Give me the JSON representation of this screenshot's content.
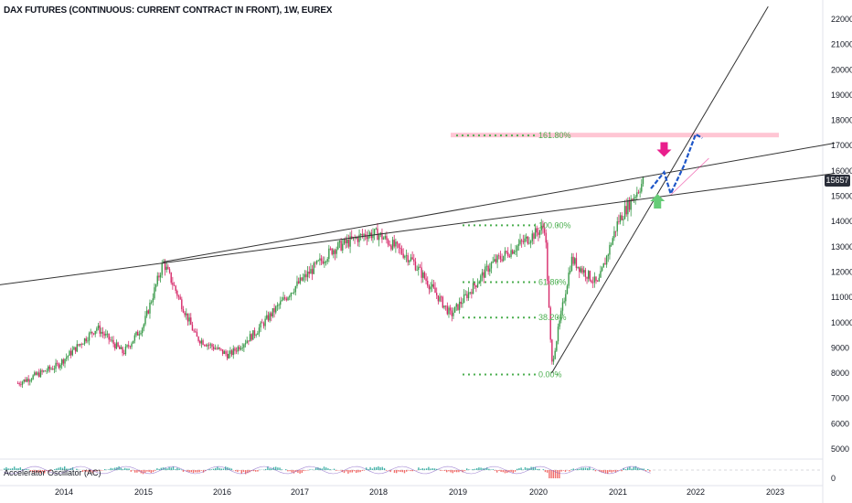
{
  "header": {
    "title": "DAX FUTURES (CONTINUOUS: CURRENT CONTRACT IN FRONT), 1W, EUREX",
    "last_price": "15657"
  },
  "indicator": {
    "label": "Accelerator Oscillator (AC)",
    "zero_label": "0"
  },
  "colors": {
    "up": "#26a69a",
    "down": "#ef5350",
    "up_candle": "#3a9a4a",
    "down_candle": "#d62a6a",
    "fib": "#4caf50",
    "fib_ext": "#ffb3c6",
    "trendline": "#333333",
    "projection": "#1e56c8",
    "arrow_down": "#e91e8c",
    "arrow_up": "#66cc77"
  },
  "chart_data": {
    "type": "candlestick",
    "title": "DAX FUTURES (CONTINUOUS: CURRENT CONTRACT IN FRONT), 1W, EUREX",
    "x_ticks": [
      "2014",
      "2015",
      "2016",
      "2017",
      "2018",
      "2019",
      "2020",
      "2021",
      "2022",
      "2023"
    ],
    "y_ticks": [
      5000,
      6000,
      7000,
      8000,
      9000,
      10000,
      11000,
      12000,
      13000,
      14000,
      15000,
      16000,
      17000,
      18000,
      19000,
      20000,
      21000,
      22000
    ],
    "ylim": [
      4500,
      22500
    ],
    "last_price": 15657,
    "price_path": [
      [
        "2013-06",
        7600
      ],
      [
        "2013-12",
        8300
      ],
      [
        "2014-06",
        9800
      ],
      [
        "2014-10",
        8800
      ],
      [
        "2015-01",
        9900
      ],
      [
        "2015-04",
        12400
      ],
      [
        "2015-09",
        9400
      ],
      [
        "2016-02",
        8700
      ],
      [
        "2016-06",
        9600
      ],
      [
        "2016-12",
        11400
      ],
      [
        "2017-06",
        12900
      ],
      [
        "2017-11",
        13500
      ],
      [
        "2018-01",
        13500
      ],
      [
        "2018-06",
        12500
      ],
      [
        "2018-12",
        10300
      ],
      [
        "2019-06",
        12300
      ],
      [
        "2020-02",
        13800
      ],
      [
        "2020-03",
        8300
      ],
      [
        "2020-06",
        12500
      ],
      [
        "2020-10",
        11500
      ],
      [
        "2021-01",
        14000
      ],
      [
        "2021-05",
        15657
      ]
    ],
    "fibonacci": [
      {
        "level": "0.00%",
        "price": 7950
      },
      {
        "level": "38.20%",
        "price": 10200
      },
      {
        "level": "61.80%",
        "price": 11600
      },
      {
        "level": "100.00%",
        "price": 13850
      },
      {
        "level": "161.80%",
        "price": 17400
      }
    ],
    "trendlines": [
      {
        "from": [
          "2013-06",
          11300
        ],
        "to": [
          "2023-10",
          15900
        ]
      },
      {
        "from": [
          "2015-04",
          12400
        ],
        "to": [
          "2023-10",
          17100
        ]
      },
      {
        "from": [
          "2020-03",
          8000
        ],
        "to": [
          "2022-12",
          22500
        ]
      }
    ],
    "projection_path": [
      [
        "2021-06",
        15300
      ],
      [
        "2021-08",
        15950
      ],
      [
        "2021-09",
        15100
      ],
      [
        "2021-11",
        16200
      ],
      [
        "2022-01",
        17450
      ],
      [
        "2022-02",
        17300
      ]
    ],
    "indicator": {
      "name": "Accelerator Oscillator (AC)",
      "zero": 0
    }
  }
}
